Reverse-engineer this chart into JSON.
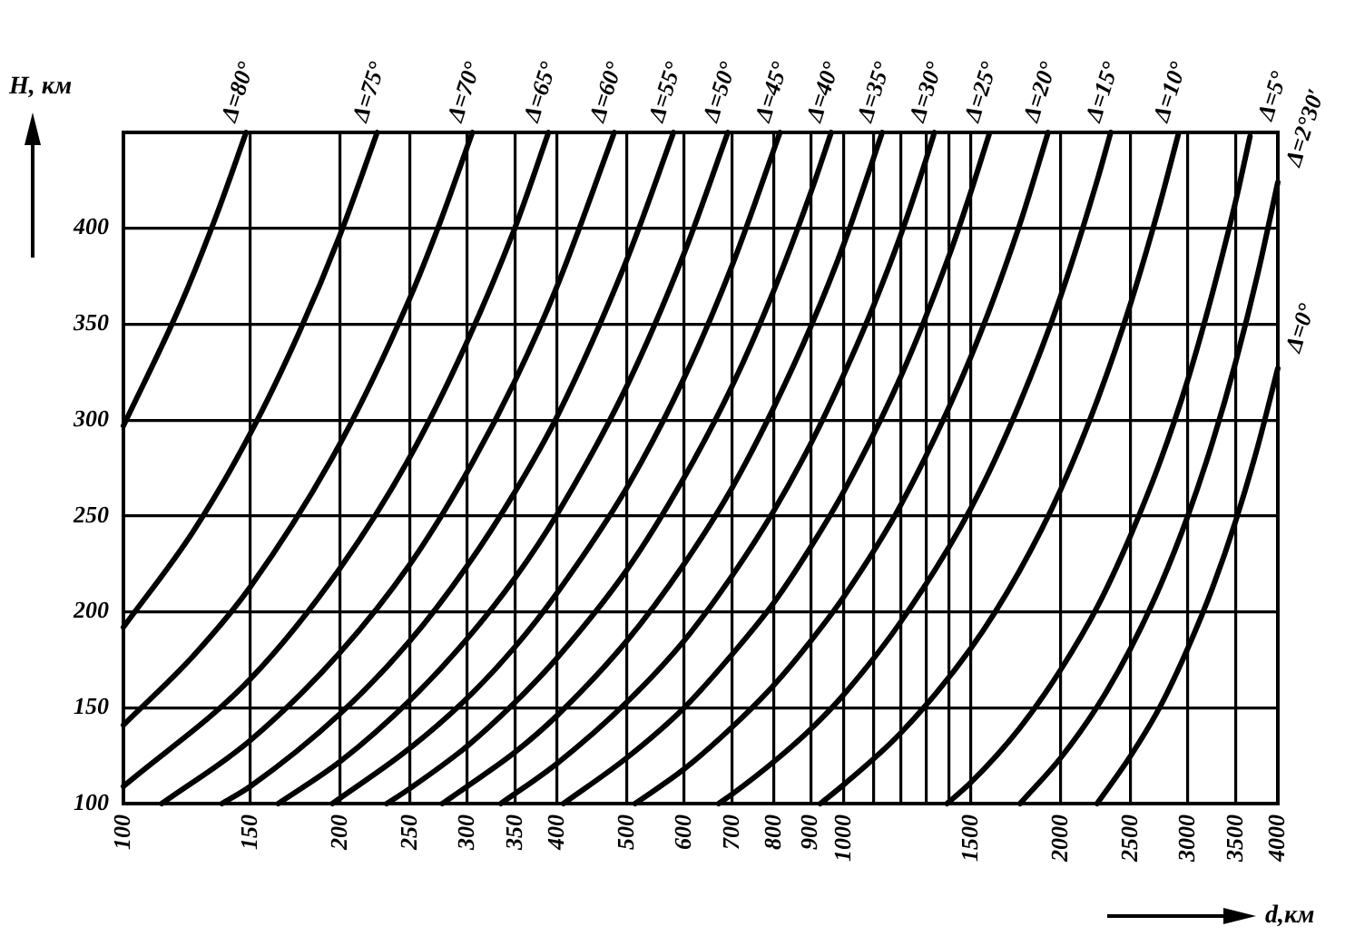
{
  "chart_data": {
    "type": "line",
    "xlabel": "d,км",
    "ylabel": "H, км",
    "log": "x",
    "grid": true,
    "xlim": [
      100,
      4000
    ],
    "ylim": [
      100,
      450
    ],
    "xticks": [
      100,
      150,
      200,
      250,
      300,
      350,
      400,
      500,
      600,
      700,
      800,
      900,
      1000,
      {
        "value": 1100,
        "label": null
      },
      {
        "value": 1200,
        "label": null
      },
      {
        "value": 1300,
        "label": null
      },
      {
        "value": 1400,
        "label": null
      },
      1500,
      2000,
      2500,
      3000,
      3500,
      4000
    ],
    "yticks": [
      100,
      150,
      200,
      250,
      300,
      350,
      400
    ],
    "series": [
      {
        "name": "Δ=80°",
        "color": "#000000",
        "x": [
          100,
          120,
          135,
          148
        ],
        "values": [
          297,
          360,
          408,
          450
        ]
      },
      {
        "name": "Δ=75°",
        "color": "#000000",
        "x": [
          100,
          125,
          150,
          175,
          200,
          225
        ],
        "values": [
          192,
          242,
          293,
          345,
          397,
          450
        ]
      },
      {
        "name": "Δ=70°",
        "color": "#000000",
        "x": [
          100,
          125,
          150,
          200,
          250,
          275,
          305
        ],
        "values": [
          141,
          177,
          213,
          288,
          364,
          403,
          450
        ]
      },
      {
        "name": "Δ=65°",
        "color": "#000000",
        "x": [
          100,
          150,
          200,
          250,
          300,
          350,
          389
        ],
        "values": [
          109,
          165,
          223,
          281,
          341,
          401,
          450
        ]
      },
      {
        "name": "Δ=60°",
        "color": "#000000",
        "x": [
          113,
          150,
          200,
          250,
          300,
          350,
          400,
          480
        ],
        "values": [
          100,
          133,
          179,
          225,
          273,
          321,
          370,
          450
        ]
      },
      {
        "name": "Δ=55°",
        "color": "#000000",
        "x": [
          137,
          150,
          200,
          250,
          300,
          350,
          400,
          500,
          580
        ],
        "values": [
          100,
          109,
          147,
          185,
          224,
          263,
          302,
          384,
          450
        ]
      },
      {
        "name": "Δ=50°",
        "color": "#000000",
        "x": [
          164,
          200,
          250,
          300,
          350,
          400,
          500,
          600,
          690
        ],
        "values": [
          100,
          122,
          154,
          186,
          218,
          251,
          318,
          387,
          450
        ]
      },
      {
        "name": "Δ=45°",
        "color": "#000000",
        "x": [
          195,
          250,
          300,
          350,
          400,
          500,
          600,
          700,
          815
        ],
        "values": [
          100,
          129,
          155,
          182,
          210,
          265,
          322,
          381,
          450
        ]
      },
      {
        "name": "Δ=40°",
        "color": "#000000",
        "x": [
          232,
          250,
          300,
          350,
          400,
          500,
          600,
          700,
          800,
          900,
          960
        ],
        "values": [
          100,
          108,
          130,
          153,
          176,
          222,
          270,
          318,
          368,
          419,
          450
        ]
      },
      {
        "name": "Δ=35°",
        "color": "#000000",
        "x": [
          277,
          300,
          350,
          400,
          500,
          600,
          700,
          800,
          900,
          1000,
          1130
        ],
        "values": [
          100,
          109,
          127,
          146,
          185,
          225,
          265,
          307,
          349,
          392,
          450
        ]
      },
      {
        "name": "Δ=30°",
        "color": "#000000",
        "x": [
          334,
          400,
          500,
          600,
          700,
          800,
          900,
          1000,
          1100,
          1200,
          1300,
          1335
        ],
        "values": [
          100,
          121,
          153,
          185,
          219,
          253,
          288,
          324,
          360,
          397,
          436,
          450
        ]
      },
      {
        "name": "Δ=25°",
        "color": "#000000",
        "x": [
          408,
          500,
          600,
          700,
          800,
          900,
          1000,
          1200,
          1400,
          1500,
          1590
        ],
        "values": [
          100,
          124,
          150,
          178,
          205,
          234,
          263,
          323,
          386,
          419,
          449
        ]
      },
      {
        "name": "Δ=20°",
        "color": "#000000",
        "x": [
          513,
          600,
          700,
          800,
          900,
          1000,
          1200,
          1500,
          1750,
          1920
        ],
        "values": [
          100,
          118,
          140,
          162,
          185,
          208,
          256,
          333,
          401,
          450
        ]
      },
      {
        "name": "Δ=15°",
        "color": "#000000",
        "x": [
          670,
          700,
          800,
          900,
          1000,
          1200,
          1500,
          1750,
          2000,
          2250,
          2345
        ],
        "values": [
          100,
          105,
          122,
          139,
          157,
          195,
          254,
          308,
          365,
          426,
          450
        ]
      },
      {
        "name": "Δ=10°",
        "color": "#000000",
        "x": [
          927,
          1000,
          1200,
          1500,
          1750,
          2000,
          2250,
          2500,
          2750,
          2910
        ],
        "values": [
          100,
          110,
          137,
          181,
          221,
          264,
          311,
          361,
          414,
          449
        ]
      },
      {
        "name": "Δ=5°",
        "color": "#000000",
        "x": [
          1390,
          1500,
          1750,
          2000,
          2250,
          2500,
          2750,
          3000,
          3250,
          3500,
          3660
        ],
        "values": [
          100,
          111,
          139,
          170,
          203,
          240,
          279,
          321,
          367,
          415,
          448
        ]
      },
      {
        "name": "Δ=2°30′",
        "color": "#000000",
        "x": [
          1755,
          2000,
          2250,
          2500,
          2750,
          3000,
          3250,
          3500,
          3750,
          4000
        ],
        "values": [
          100,
          124,
          151,
          181,
          214,
          250,
          289,
          331,
          376,
          424
        ]
      },
      {
        "name": "Δ=0°",
        "color": "#000000",
        "x": [
          2245,
          2500,
          2750,
          3000,
          3250,
          3500,
          3750,
          4000
        ],
        "values": [
          100,
          125,
          151,
          181,
          213,
          248,
          286,
          327
        ]
      }
    ]
  }
}
